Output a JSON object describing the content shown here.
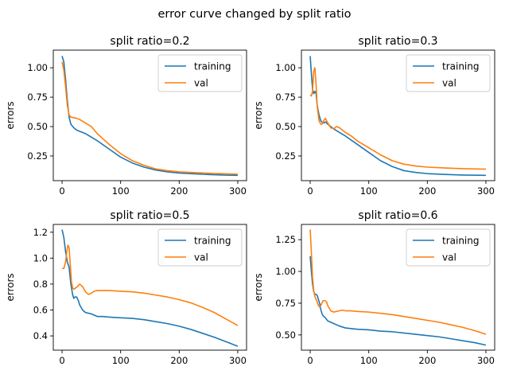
{
  "figure": {
    "suptitle": "error curve changed by split ratio"
  },
  "colors": {
    "training": "#1f77b4",
    "val": "#ff7f0e"
  },
  "chart_data": [
    {
      "type": "line",
      "title": "split ratio=0.2",
      "ylabel": "errors",
      "xlim": [
        -15,
        315
      ],
      "ylim": [
        0.04,
        1.15
      ],
      "xticks": [
        0,
        100,
        200,
        300
      ],
      "yticks": [
        0.25,
        0.5,
        0.75,
        1.0
      ],
      "ytick_labels": [
        "0.25",
        "0.50",
        "0.75",
        "1.00"
      ],
      "legend": "top-right",
      "series": [
        {
          "name": "training",
          "x": [
            0,
            3,
            6,
            9,
            12,
            15,
            20,
            25,
            30,
            40,
            50,
            60,
            80,
            100,
            120,
            140,
            160,
            180,
            200,
            220,
            250,
            280,
            300
          ],
          "y": [
            1.1,
            1.05,
            0.9,
            0.72,
            0.58,
            0.52,
            0.49,
            0.47,
            0.46,
            0.44,
            0.41,
            0.38,
            0.31,
            0.24,
            0.19,
            0.155,
            0.13,
            0.115,
            0.105,
            0.1,
            0.092,
            0.087,
            0.085
          ]
        },
        {
          "name": "val",
          "x": [
            0,
            3,
            6,
            9,
            12,
            15,
            20,
            25,
            30,
            40,
            50,
            60,
            80,
            100,
            120,
            140,
            160,
            180,
            200,
            220,
            250,
            280,
            300
          ],
          "y": [
            1.05,
            0.98,
            0.84,
            0.68,
            0.6,
            0.58,
            0.575,
            0.57,
            0.56,
            0.53,
            0.5,
            0.44,
            0.35,
            0.27,
            0.21,
            0.17,
            0.14,
            0.125,
            0.115,
            0.11,
            0.103,
            0.098,
            0.095
          ]
        }
      ]
    },
    {
      "type": "line",
      "title": "split ratio=0.3",
      "ylabel": "errors",
      "xlim": [
        -15,
        315
      ],
      "ylim": [
        0.04,
        1.15
      ],
      "xticks": [
        0,
        100,
        200,
        300
      ],
      "yticks": [
        0.25,
        0.5,
        0.75,
        1.0
      ],
      "ytick_labels": [
        "0.25",
        "0.50",
        "0.75",
        "1.00"
      ],
      "legend": "top-right",
      "series": [
        {
          "name": "training",
          "x": [
            0,
            2,
            4,
            6,
            8,
            10,
            12,
            15,
            18,
            20,
            23,
            26,
            30,
            35,
            40,
            50,
            60,
            80,
            100,
            120,
            140,
            160,
            180,
            200,
            230,
            260,
            300
          ],
          "y": [
            1.1,
            0.95,
            0.82,
            0.78,
            0.8,
            0.78,
            0.68,
            0.6,
            0.55,
            0.54,
            0.53,
            0.54,
            0.52,
            0.5,
            0.48,
            0.45,
            0.42,
            0.35,
            0.28,
            0.21,
            0.16,
            0.125,
            0.11,
            0.1,
            0.093,
            0.088,
            0.085
          ]
        },
        {
          "name": "val",
          "x": [
            0,
            2,
            4,
            6,
            8,
            10,
            12,
            15,
            18,
            20,
            23,
            26,
            30,
            35,
            40,
            45,
            50,
            55,
            60,
            70,
            80,
            100,
            120,
            140,
            160,
            180,
            200,
            230,
            260,
            300
          ],
          "y": [
            0.77,
            0.76,
            0.8,
            0.97,
            1.0,
            0.86,
            0.67,
            0.55,
            0.52,
            0.52,
            0.55,
            0.57,
            0.53,
            0.49,
            0.48,
            0.5,
            0.49,
            0.47,
            0.45,
            0.42,
            0.38,
            0.32,
            0.26,
            0.21,
            0.18,
            0.165,
            0.155,
            0.148,
            0.142,
            0.138
          ]
        }
      ]
    },
    {
      "type": "line",
      "title": "split ratio=0.5",
      "ylabel": "errors",
      "xlim": [
        -15,
        315
      ],
      "ylim": [
        0.29,
        1.26
      ],
      "xticks": [
        0,
        100,
        200,
        300
      ],
      "yticks": [
        0.4,
        0.6,
        0.8,
        1.0,
        1.2
      ],
      "ytick_labels": [
        "0.4",
        "0.6",
        "0.8",
        "1.0",
        "1.2"
      ],
      "legend": "top-right",
      "series": [
        {
          "name": "training",
          "x": [
            0,
            3,
            6,
            9,
            12,
            15,
            18,
            20,
            22,
            25,
            28,
            30,
            35,
            40,
            45,
            50,
            55,
            60,
            70,
            80,
            100,
            120,
            140,
            160,
            180,
            200,
            220,
            240,
            260,
            280,
            300
          ],
          "y": [
            1.22,
            1.16,
            1.05,
            0.97,
            0.93,
            0.8,
            0.72,
            0.69,
            0.7,
            0.7,
            0.67,
            0.64,
            0.6,
            0.58,
            0.575,
            0.57,
            0.56,
            0.55,
            0.55,
            0.545,
            0.54,
            0.535,
            0.525,
            0.51,
            0.495,
            0.475,
            0.45,
            0.42,
            0.39,
            0.355,
            0.32
          ]
        },
        {
          "name": "val",
          "x": [
            0,
            3,
            6,
            8,
            10,
            12,
            14,
            16,
            18,
            20,
            23,
            26,
            30,
            35,
            40,
            45,
            50,
            55,
            60,
            70,
            80,
            100,
            120,
            140,
            160,
            180,
            200,
            220,
            240,
            260,
            280,
            300
          ],
          "y": [
            0.92,
            0.92,
            0.97,
            1.05,
            1.1,
            1.08,
            0.95,
            0.82,
            0.77,
            0.76,
            0.77,
            0.78,
            0.8,
            0.78,
            0.74,
            0.72,
            0.73,
            0.745,
            0.75,
            0.75,
            0.75,
            0.745,
            0.74,
            0.73,
            0.715,
            0.7,
            0.68,
            0.655,
            0.62,
            0.58,
            0.53,
            0.48
          ]
        }
      ]
    },
    {
      "type": "line",
      "title": "split ratio=0.6",
      "ylabel": "errors",
      "xlim": [
        -15,
        315
      ],
      "ylim": [
        0.38,
        1.37
      ],
      "xticks": [
        0,
        100,
        200,
        300
      ],
      "yticks": [
        0.5,
        0.75,
        1.0,
        1.25
      ],
      "ytick_labels": [
        "0.50",
        "0.75",
        "1.00",
        "1.25"
      ],
      "legend": "top-right",
      "series": [
        {
          "name": "training",
          "x": [
            0,
            2,
            4,
            6,
            8,
            10,
            12,
            14,
            16,
            18,
            20,
            22,
            25,
            30,
            35,
            40,
            50,
            60,
            80,
            100,
            120,
            140,
            160,
            180,
            200,
            220,
            240,
            260,
            280,
            300
          ],
          "y": [
            1.12,
            1.0,
            0.9,
            0.84,
            0.82,
            0.82,
            0.81,
            0.78,
            0.75,
            0.7,
            0.67,
            0.65,
            0.64,
            0.61,
            0.6,
            0.59,
            0.57,
            0.555,
            0.545,
            0.54,
            0.53,
            0.525,
            0.515,
            0.505,
            0.495,
            0.485,
            0.47,
            0.455,
            0.44,
            0.42
          ]
        },
        {
          "name": "val",
          "x": [
            0,
            2,
            4,
            6,
            8,
            10,
            12,
            14,
            16,
            18,
            20,
            22,
            25,
            28,
            30,
            35,
            40,
            45,
            50,
            55,
            60,
            70,
            80,
            100,
            120,
            140,
            160,
            180,
            200,
            220,
            240,
            260,
            280,
            300
          ],
          "y": [
            1.33,
            1.15,
            0.95,
            0.85,
            0.8,
            0.78,
            0.76,
            0.73,
            0.72,
            0.73,
            0.75,
            0.77,
            0.77,
            0.76,
            0.73,
            0.69,
            0.68,
            0.685,
            0.69,
            0.695,
            0.69,
            0.69,
            0.685,
            0.68,
            0.67,
            0.66,
            0.645,
            0.63,
            0.615,
            0.6,
            0.58,
            0.56,
            0.535,
            0.505
          ]
        }
      ]
    }
  ]
}
